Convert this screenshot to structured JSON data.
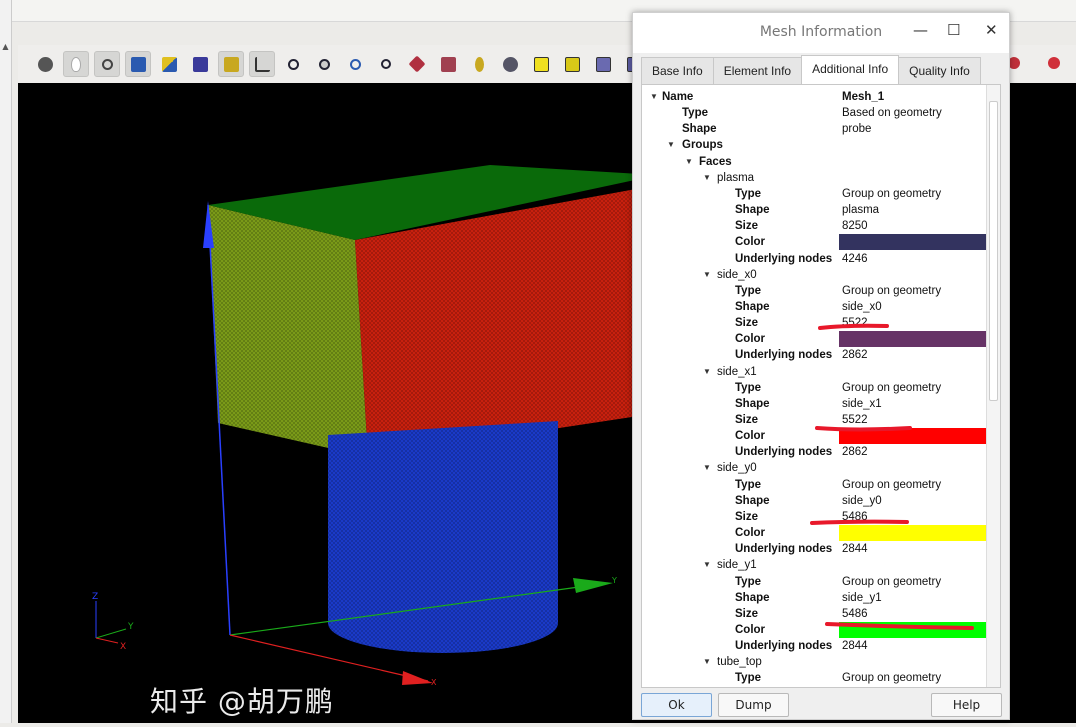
{
  "dialog": {
    "title": "Mesh Information",
    "minimize": "—",
    "maximize": "☐",
    "close": "✕",
    "tabs": [
      {
        "label": "Base Info"
      },
      {
        "label": "Element Info"
      },
      {
        "label": "Additional Info",
        "active": true
      },
      {
        "label": "Quality Info"
      }
    ],
    "buttons": {
      "ok": "Ok",
      "dump": "Dump",
      "help": "Help"
    }
  },
  "tree": [
    {
      "level": 0,
      "expand": true,
      "key": "Name",
      "value": "Mesh_1",
      "bold": true,
      "vbold": true
    },
    {
      "level": 1,
      "key": "Type",
      "value": "Based on geometry",
      "bold": true
    },
    {
      "level": 1,
      "key": "Shape",
      "value": "probe",
      "bold": true
    },
    {
      "level": 1,
      "expand": true,
      "key": "Groups",
      "bold": true
    },
    {
      "level": 2,
      "expand": true,
      "key": "Faces",
      "bold": true
    },
    {
      "level": 3,
      "expand": true,
      "key": "plasma"
    },
    {
      "level": 4,
      "key": "Type",
      "value": "Group on geometry",
      "bold": true
    },
    {
      "level": 4,
      "key": "Shape",
      "value": "plasma",
      "bold": true
    },
    {
      "level": 4,
      "key": "Size",
      "value": "8250",
      "bold": true
    },
    {
      "level": 4,
      "key": "Color",
      "color": "#33335f",
      "bold": true
    },
    {
      "level": 4,
      "key": "Underlying nodes",
      "value": "4246",
      "bold": true
    },
    {
      "level": 3,
      "expand": true,
      "key": "side_x0"
    },
    {
      "level": 4,
      "key": "Type",
      "value": "Group on geometry",
      "bold": true
    },
    {
      "level": 4,
      "key": "Shape",
      "value": "side_x0",
      "bold": true
    },
    {
      "level": 4,
      "key": "Size",
      "value": "5522",
      "bold": true
    },
    {
      "level": 4,
      "key": "Color",
      "color": "#663366",
      "bold": true
    },
    {
      "level": 4,
      "key": "Underlying nodes",
      "value": "2862",
      "bold": true
    },
    {
      "level": 3,
      "expand": true,
      "key": "side_x1"
    },
    {
      "level": 4,
      "key": "Type",
      "value": "Group on geometry",
      "bold": true
    },
    {
      "level": 4,
      "key": "Shape",
      "value": "side_x1",
      "bold": true
    },
    {
      "level": 4,
      "key": "Size",
      "value": "5522",
      "bold": true
    },
    {
      "level": 4,
      "key": "Color",
      "color": "#ff0000",
      "bold": true
    },
    {
      "level": 4,
      "key": "Underlying nodes",
      "value": "2862",
      "bold": true
    },
    {
      "level": 3,
      "expand": true,
      "key": "side_y0"
    },
    {
      "level": 4,
      "key": "Type",
      "value": "Group on geometry",
      "bold": true
    },
    {
      "level": 4,
      "key": "Shape",
      "value": "side_y0",
      "bold": true
    },
    {
      "level": 4,
      "key": "Size",
      "value": "5486",
      "bold": true
    },
    {
      "level": 4,
      "key": "Color",
      "color": "#ffff00",
      "bold": true
    },
    {
      "level": 4,
      "key": "Underlying nodes",
      "value": "2844",
      "bold": true
    },
    {
      "level": 3,
      "expand": true,
      "key": "side_y1"
    },
    {
      "level": 4,
      "key": "Type",
      "value": "Group on geometry",
      "bold": true
    },
    {
      "level": 4,
      "key": "Shape",
      "value": "side_y1",
      "bold": true
    },
    {
      "level": 4,
      "key": "Size",
      "value": "5486",
      "bold": true
    },
    {
      "level": 4,
      "key": "Color",
      "color": "#00ff00",
      "bold": true
    },
    {
      "level": 4,
      "key": "Underlying nodes",
      "value": "2844",
      "bold": true
    },
    {
      "level": 3,
      "expand": true,
      "key": "tube_top"
    },
    {
      "level": 4,
      "key": "Type",
      "value": "Group on geometry",
      "bold": true
    }
  ],
  "axes": {
    "x": "X",
    "y": "Y",
    "z": "Z"
  },
  "watermark": "知乎 @胡万鹏",
  "colors": {
    "top_face": "#0a6a0a",
    "left_face": "#7a9a18",
    "right_face": "#c8200e",
    "cylinder": "#1a3ac8"
  }
}
